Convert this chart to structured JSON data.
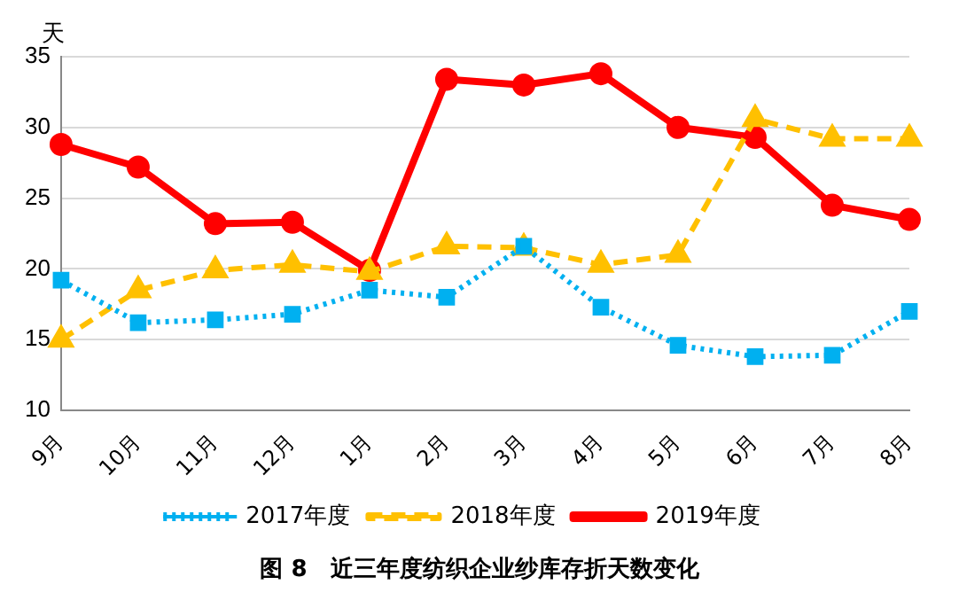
{
  "chart_data": {
    "type": "line",
    "title": "图 8　近三年度纺织企业纱库存折天数变化",
    "ylabel": "天",
    "categories": [
      "9月",
      "10月",
      "11月",
      "12月",
      "1月",
      "2月",
      "3月",
      "4月",
      "5月",
      "6月",
      "7月",
      "8月"
    ],
    "series": [
      {
        "name": "2017年度",
        "color": "#00b0f0",
        "marker": "square",
        "line_style": "dotted",
        "values": [
          19.2,
          16.2,
          16.4,
          16.8,
          18.5,
          18.0,
          21.6,
          17.3,
          14.6,
          13.8,
          13.9,
          17.0
        ]
      },
      {
        "name": "2018年度",
        "color": "#ffc000",
        "marker": "triangle",
        "line_style": "dashed",
        "values": [
          15.0,
          18.5,
          19.9,
          20.3,
          19.8,
          21.6,
          21.5,
          20.3,
          21.0,
          30.6,
          29.2,
          29.2
        ]
      },
      {
        "name": "2019年度",
        "color": "#ff0000",
        "marker": "circle",
        "line_style": "solid",
        "values": [
          28.8,
          27.2,
          23.2,
          23.3,
          19.9,
          33.4,
          33.0,
          33.8,
          30.0,
          29.3,
          24.5,
          23.5
        ]
      }
    ],
    "ylim": [
      10,
      35
    ],
    "yticks": [
      10,
      15,
      20,
      25,
      30,
      35
    ],
    "grid": "y",
    "legend": "bottom"
  }
}
